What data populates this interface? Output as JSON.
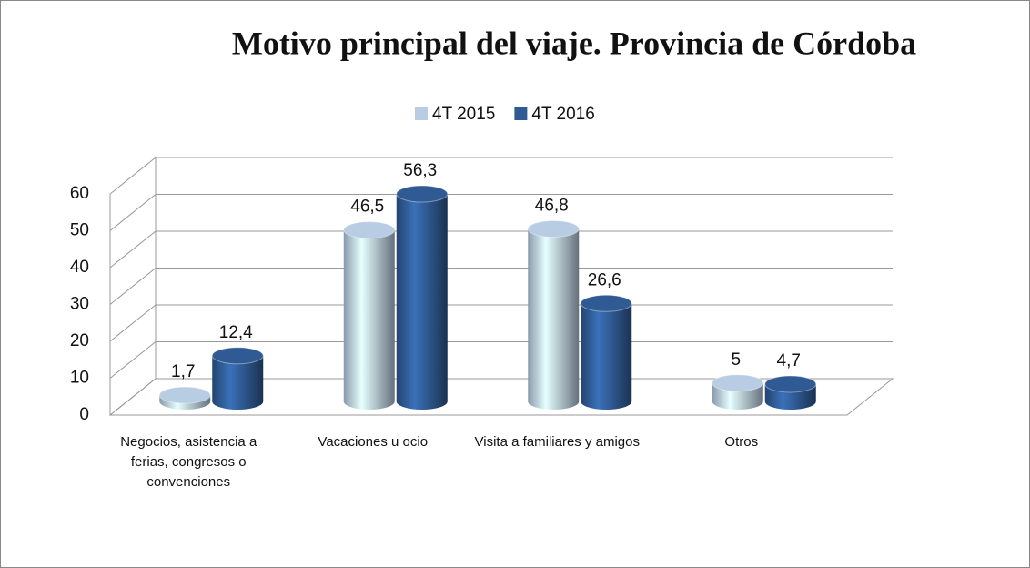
{
  "chart_data": {
    "type": "bar3d",
    "title": "Motivo principal del viaje. Provincia de Córdoba",
    "categories": [
      "Negocios, asistencia a ferias, congresos o convenciones",
      "Vacaciones u ocio",
      "Visita a familiares y amigos",
      "Otros"
    ],
    "series": [
      {
        "name": "4T 2015",
        "color": "#b8cce4",
        "values": [
          1.7,
          46.5,
          46.8,
          5
        ],
        "value_labels": [
          "1,7",
          "46,5",
          "46,8",
          "5"
        ]
      },
      {
        "name": "4T 2016",
        "color": "#2f5a94",
        "values": [
          12.4,
          56.3,
          26.6,
          4.7
        ],
        "value_labels": [
          "12,4",
          "56,3",
          "26,6",
          "4,7"
        ]
      }
    ],
    "ylim": [
      0,
      60
    ],
    "yticks": [
      0,
      10,
      20,
      30,
      40,
      50,
      60
    ],
    "grid": true,
    "legend": "top"
  }
}
